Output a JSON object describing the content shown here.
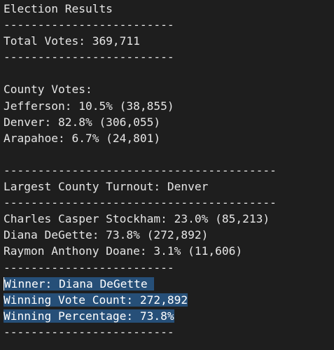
{
  "lines": [
    {
      "text": "Election Results",
      "selected": false
    },
    {
      "text": "-------------------------",
      "selected": false
    },
    {
      "text": "Total Votes: 369,711",
      "selected": false
    },
    {
      "text": "-------------------------",
      "selected": false
    },
    {
      "text": "",
      "selected": false
    },
    {
      "text": "County Votes:",
      "selected": false
    },
    {
      "text": "Jefferson: 10.5% (38,855)",
      "selected": false
    },
    {
      "text": "Denver: 82.8% (306,055)",
      "selected": false
    },
    {
      "text": "Arapahoe: 6.7% (24,801)",
      "selected": false
    },
    {
      "text": "",
      "selected": false
    },
    {
      "text": "----------------------------------------",
      "selected": false
    },
    {
      "text": "Largest County Turnout: Denver",
      "selected": false
    },
    {
      "text": "----------------------------------------",
      "selected": false
    },
    {
      "text": "Charles Casper Stockham: 23.0% (85,213)",
      "selected": false
    },
    {
      "text": "Diana DeGette: 73.8% (272,892)",
      "selected": false
    },
    {
      "text": "Raymon Anthony Doane: 3.1% (11,606)",
      "selected": false
    },
    {
      "text": "-------------------------",
      "selected": false
    },
    {
      "text": "Winner: Diana DeGette ",
      "selected": true
    },
    {
      "text": "Winning Vote Count: 272,892",
      "selected": true
    },
    {
      "text": "Winning Percentage: 73.8%",
      "selected": true
    },
    {
      "text": "-------------------------",
      "selected": false
    }
  ]
}
